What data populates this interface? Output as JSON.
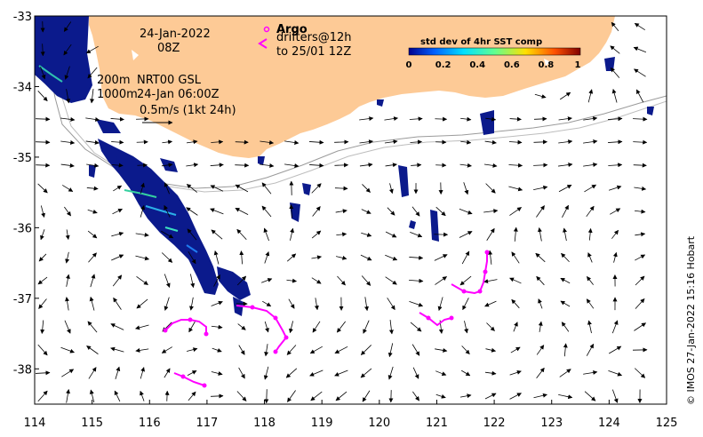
{
  "map": {
    "date_line1": "24-Jan-2022",
    "date_line2": "08Z",
    "argo_label": "Argo",
    "drifters_line1": "drifters@12h",
    "drifters_line2": "to 25/01 12Z",
    "depth_200": "200m",
    "depth_1000": "1000m",
    "product": "NRT00 GSL",
    "product_time": "24-Jan 06:00Z",
    "scale_label": "0.5m/s (1kt 24h)",
    "credit": "© IMOS 27-Jan-2022 15:16 Hobart",
    "colors": {
      "land": "#fdca96",
      "drifter": "#ff00ff",
      "sst_dense": "#0b1a8c"
    }
  },
  "colorbar": {
    "title": "std dev of 4hr SST comp",
    "ticks": [
      "0",
      "0.2",
      "0.4",
      "0.6",
      "0.8",
      "1"
    ],
    "colors": [
      "#00008f",
      "#0060ff",
      "#00e0ff",
      "#60ff90",
      "#ffe000",
      "#ff5000",
      "#800000"
    ]
  },
  "axes": {
    "x_ticks": [
      "114",
      "115",
      "116",
      "117",
      "118",
      "119",
      "120",
      "121",
      "122",
      "123",
      "124",
      "125"
    ],
    "y_ticks": [
      "-33",
      "-34",
      "-35",
      "-36",
      "-37",
      "-38"
    ],
    "xlim": [
      114,
      125
    ],
    "ylim": [
      -38.5,
      -33
    ]
  }
}
